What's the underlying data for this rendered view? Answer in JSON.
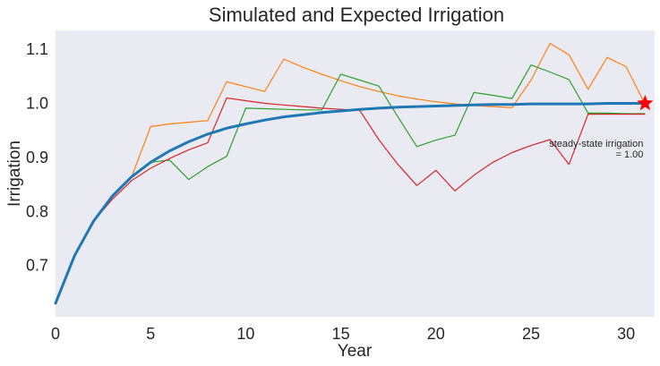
{
  "chart_data": {
    "type": "line",
    "title": "Simulated and Expected Irrigation",
    "xlabel": "Year",
    "ylabel": "Irrigation",
    "xlim": [
      0,
      31.5
    ],
    "ylim": [
      0.605,
      1.135
    ],
    "xticks": [
      0,
      5,
      10,
      15,
      20,
      25,
      30
    ],
    "yticks": [
      0.7,
      0.8,
      0.9,
      1.0,
      1.1
    ],
    "ytick_labels": [
      "0.7",
      "0.8",
      "0.9",
      "1.0",
      "1.1"
    ],
    "grid": false,
    "background": "#eaeaf2",
    "x": [
      0,
      1,
      2,
      3,
      4,
      5,
      6,
      7,
      8,
      9,
      10,
      11,
      12,
      13,
      14,
      15,
      16,
      17,
      18,
      19,
      20,
      21,
      22,
      23,
      24,
      25,
      26,
      27,
      28,
      29,
      30,
      31
    ],
    "expected": {
      "color": "#1f77b4",
      "values": [
        0.63,
        0.718,
        0.782,
        0.829,
        0.864,
        0.891,
        0.912,
        0.929,
        0.943,
        0.954,
        0.962,
        0.969,
        0.975,
        0.979,
        0.983,
        0.986,
        0.989,
        0.991,
        0.993,
        0.994,
        0.995,
        0.996,
        0.997,
        0.998,
        0.998,
        0.999,
        0.999,
        0.999,
        0.999,
        1.0,
        1.0,
        1.0
      ]
    },
    "series": [
      {
        "color": "#ff7f0e",
        "values": [
          0.63,
          0.718,
          0.782,
          0.829,
          0.864,
          0.957,
          0.962,
          0.965,
          0.968,
          1.04,
          1.031,
          1.022,
          1.082,
          1.067,
          1.054,
          1.042,
          1.031,
          1.022,
          1.014,
          1.008,
          1.003,
          0.999,
          0.996,
          0.994,
          0.992,
          1.043,
          1.111,
          1.09,
          1.026,
          1.085,
          1.068,
          0.998
        ]
      },
      {
        "color": "#2ca02c",
        "values": [
          0.63,
          0.718,
          0.782,
          0.829,
          0.864,
          0.891,
          0.895,
          0.859,
          0.883,
          0.902,
          0.991,
          0.99,
          0.989,
          0.988,
          0.988,
          1.054,
          1.043,
          1.032,
          0.975,
          0.92,
          0.932,
          0.941,
          1.02,
          1.015,
          1.009,
          1.071,
          1.058,
          1.044,
          0.982,
          0.982,
          0.981,
          0.981
        ]
      },
      {
        "color": "#d62728",
        "values": [
          0.63,
          0.718,
          0.782,
          0.823,
          0.857,
          0.88,
          0.898,
          0.914,
          0.927,
          1.01,
          1.005,
          1.0,
          0.997,
          0.994,
          0.991,
          0.989,
          0.987,
          0.933,
          0.887,
          0.848,
          0.876,
          0.838,
          0.867,
          0.891,
          0.909,
          0.922,
          0.933,
          0.887,
          0.98,
          0.98,
          0.98,
          0.98
        ]
      }
    ],
    "marker": {
      "x": 31,
      "y": 1.0,
      "color": "#ff0000",
      "shape": "star"
    },
    "annotation": {
      "line1": "steady-state irrigation",
      "line2": "= 1.00",
      "x": 31,
      "y": 0.915
    }
  }
}
